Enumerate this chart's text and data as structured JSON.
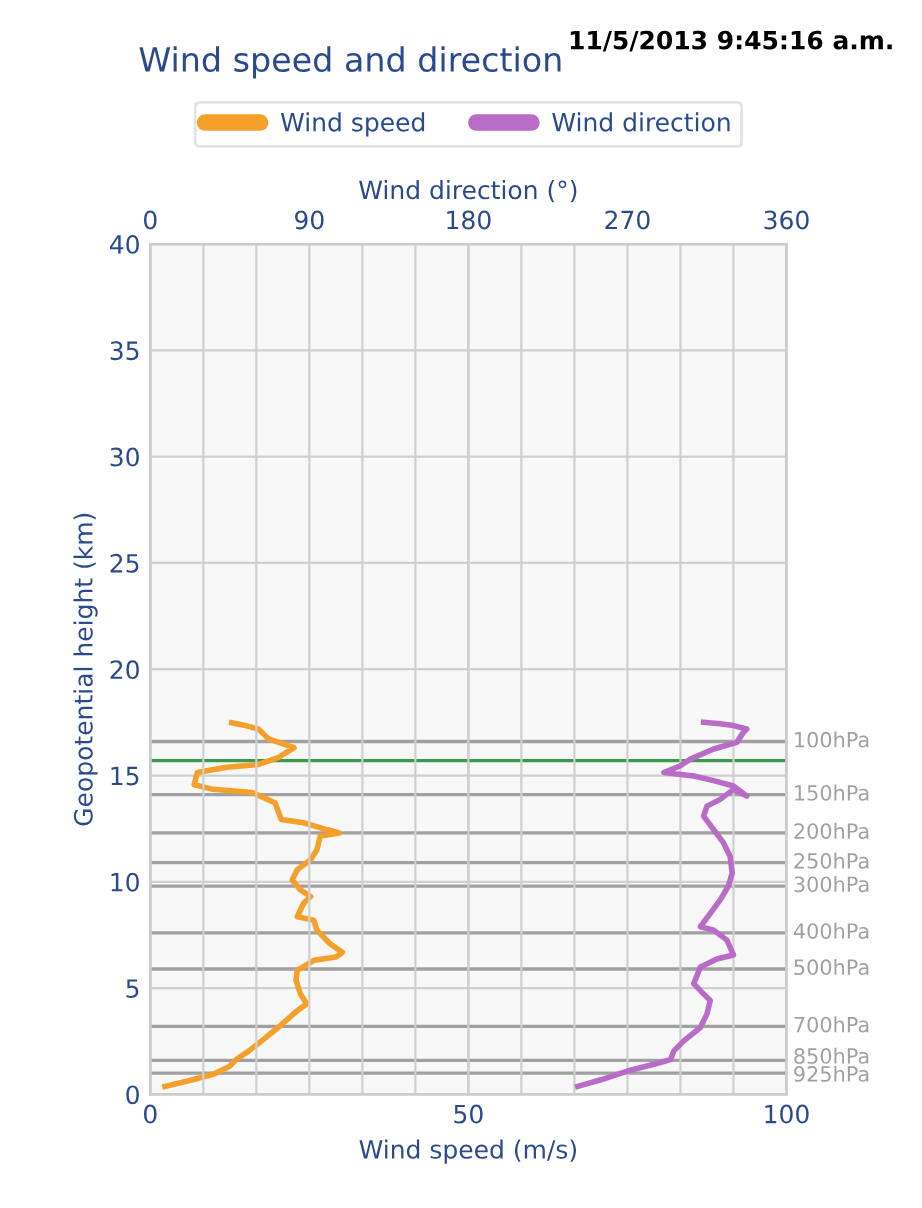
{
  "chart_data": {
    "type": "line",
    "title": "Wind speed and direction",
    "annotations": [
      "11/5/2013 9:45:16 a.m."
    ],
    "xlabel": "Wind speed (m/s)",
    "x2label": "Wind direction (°)",
    "ylabel": "Geopotential height (km)",
    "xlim": [
      0,
      100
    ],
    "xticks": [
      0,
      50,
      100
    ],
    "x2lim": [
      0,
      360
    ],
    "x2ticks": [
      0,
      {
        "value": 30,
        "label": null
      },
      {
        "value": 60,
        "label": null
      },
      90,
      {
        "value": 120,
        "label": null
      },
      {
        "value": 150,
        "label": null
      },
      180,
      {
        "value": 210,
        "label": null
      },
      {
        "value": 240,
        "label": null
      },
      270,
      {
        "value": 300,
        "label": null
      },
      {
        "value": 330,
        "label": null
      },
      360
    ],
    "ylim": [
      0,
      40
    ],
    "yticks": [
      0,
      5,
      10,
      15,
      20,
      25,
      30,
      35,
      40
    ],
    "grid": true,
    "legend": "top",
    "marker": "none",
    "line_style": "solid",
    "series": [
      {
        "name": "Wind speed",
        "color": "#f5a02a",
        "x": [
          2.3,
          5.9,
          9.9,
          12.5,
          13.5,
          15.5,
          17.5,
          20.1,
          23.1,
          24.6,
          23.6,
          22.9,
          23.1,
          25.7,
          29.2,
          30.2,
          28.2,
          26.2,
          25.7,
          23.1,
          24.1,
          25.2,
          23.6,
          22.3,
          23.1,
          25.2,
          26.2,
          26.7,
          29.7,
          27.7,
          24.1,
          20.6,
          19.6,
          16.0,
          9.9,
          6.9,
          7.4,
          12.0,
          17.0,
          20.1,
          22.6,
          21.1,
          18.6,
          17.0,
          15.0,
          12.8
        ],
        "values": [
          0.38,
          0.63,
          0.95,
          1.33,
          1.64,
          2.05,
          2.52,
          3.15,
          3.94,
          4.26,
          4.73,
          5.36,
          5.84,
          6.31,
          6.47,
          6.69,
          7.1,
          7.73,
          8.2,
          8.36,
          8.99,
          9.31,
          9.62,
          10.09,
          10.57,
          11.04,
          11.51,
          12.15,
          12.3,
          12.46,
          12.78,
          12.93,
          13.72,
          14.2,
          14.35,
          14.57,
          15.14,
          15.39,
          15.52,
          15.84,
          16.31,
          16.47,
          16.72,
          17.19,
          17.35,
          17.48
        ]
      },
      {
        "name": "Wind direction",
        "color": "#b86cc8",
        "axis": "x2",
        "x": [
          241.9,
          255,
          270,
          285,
          294.4,
          296.3,
          301.9,
          311.3,
          315,
          316.9,
          313.1,
          307.5,
          311.3,
          320.6,
          330,
          326.3,
          318.8,
          311.3,
          316.9,
          322.5,
          327,
          329.3,
          328.1,
          324.4,
          318.8,
          313.1,
          315,
          322.5,
          330,
          337.5,
          330,
          318.8,
          307.5,
          290.6,
          300,
          305.6,
          318.8,
          331.9,
          335.6,
          337.5,
          330,
          322.5,
          313.1
        ],
        "values": [
          0.38,
          0.69,
          1.1,
          1.42,
          1.64,
          2.05,
          2.52,
          3.15,
          3.79,
          4.42,
          4.73,
          5.21,
          5.99,
          6.37,
          6.56,
          7.26,
          7.73,
          7.89,
          8.52,
          9.15,
          9.78,
          10.41,
          11.2,
          11.83,
          12.46,
          13.09,
          13.56,
          13.88,
          14.35,
          14.04,
          14.51,
          14.76,
          14.98,
          15.14,
          15.46,
          15.77,
          16.25,
          16.56,
          17.03,
          17.19,
          17.35,
          17.44,
          17.51
        ]
      }
    ],
    "ref_lines": [
      {
        "axis": "y",
        "value": 16.6,
        "label": "100hPa",
        "color": "#a0a0a0"
      },
      {
        "axis": "y",
        "value": 15.7,
        "label": null,
        "color": "#3a9a4a"
      },
      {
        "axis": "y",
        "value": 14.1,
        "label": "150hPa",
        "color": "#a0a0a0"
      },
      {
        "axis": "y",
        "value": 12.3,
        "label": "200hPa",
        "color": "#a0a0a0"
      },
      {
        "axis": "y",
        "value": 10.9,
        "label": "250hPa",
        "color": "#a0a0a0"
      },
      {
        "axis": "y",
        "value": 9.8,
        "label": "300hPa",
        "color": "#a0a0a0"
      },
      {
        "axis": "y",
        "value": 7.6,
        "label": "400hPa",
        "color": "#a0a0a0"
      },
      {
        "axis": "y",
        "value": 5.9,
        "label": "500hPa",
        "color": "#a0a0a0"
      },
      {
        "axis": "y",
        "value": 3.2,
        "label": "700hPa",
        "color": "#a0a0a0"
      },
      {
        "axis": "y",
        "value": 1.6,
        "label": "850hPa",
        "color": "#a0a0a0"
      },
      {
        "axis": "y",
        "value": 1.0,
        "label": "925hPa",
        "color": "#a0a0a0"
      }
    ]
  }
}
